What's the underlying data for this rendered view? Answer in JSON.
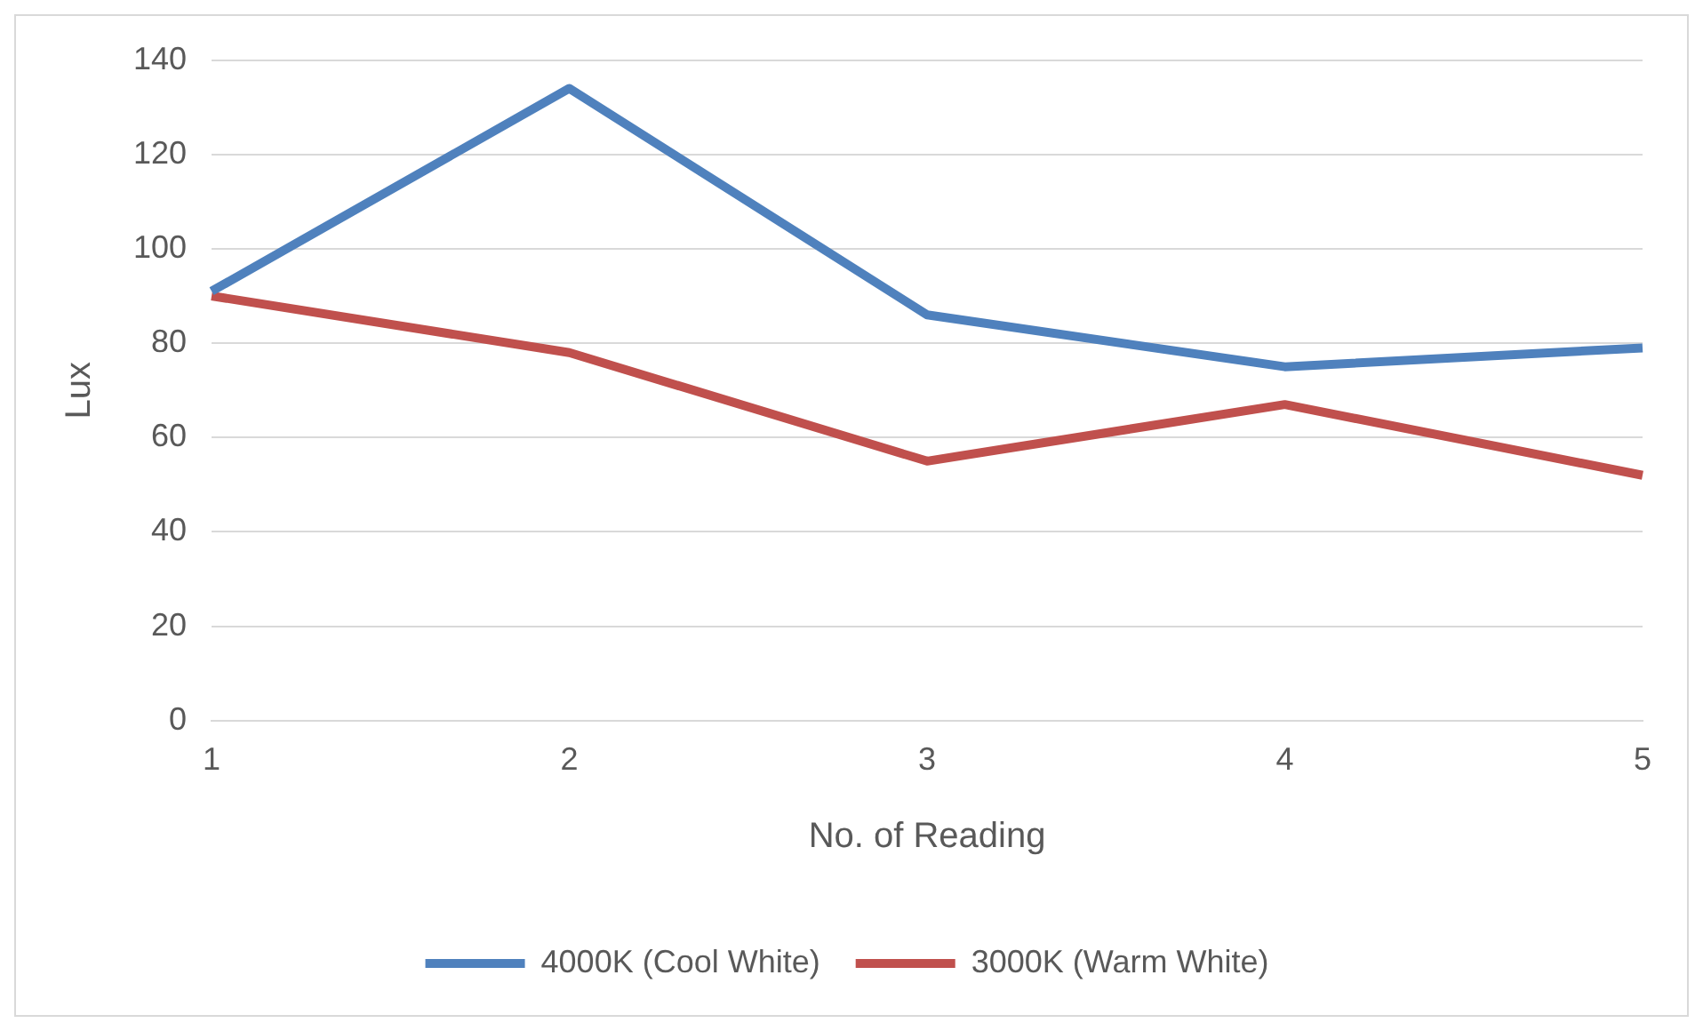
{
  "chart_data": {
    "type": "line",
    "xlabel": "No. of Reading",
    "ylabel": "Lux",
    "categories": [
      "1",
      "2",
      "3",
      "4",
      "5"
    ],
    "series": [
      {
        "name": "4000K (Cool White)",
        "color": "#4f81bd",
        "values": [
          91,
          134,
          86,
          75,
          79
        ]
      },
      {
        "name": "3000K (Warm White)",
        "color": "#c0504d",
        "values": [
          90,
          78,
          55,
          67,
          52
        ]
      }
    ],
    "ylim": [
      0,
      140
    ],
    "yticks": [
      0,
      20,
      40,
      60,
      80,
      100,
      120,
      140
    ],
    "grid": "y",
    "legend": "bottom",
    "marker": "none",
    "line_style": "solid"
  }
}
